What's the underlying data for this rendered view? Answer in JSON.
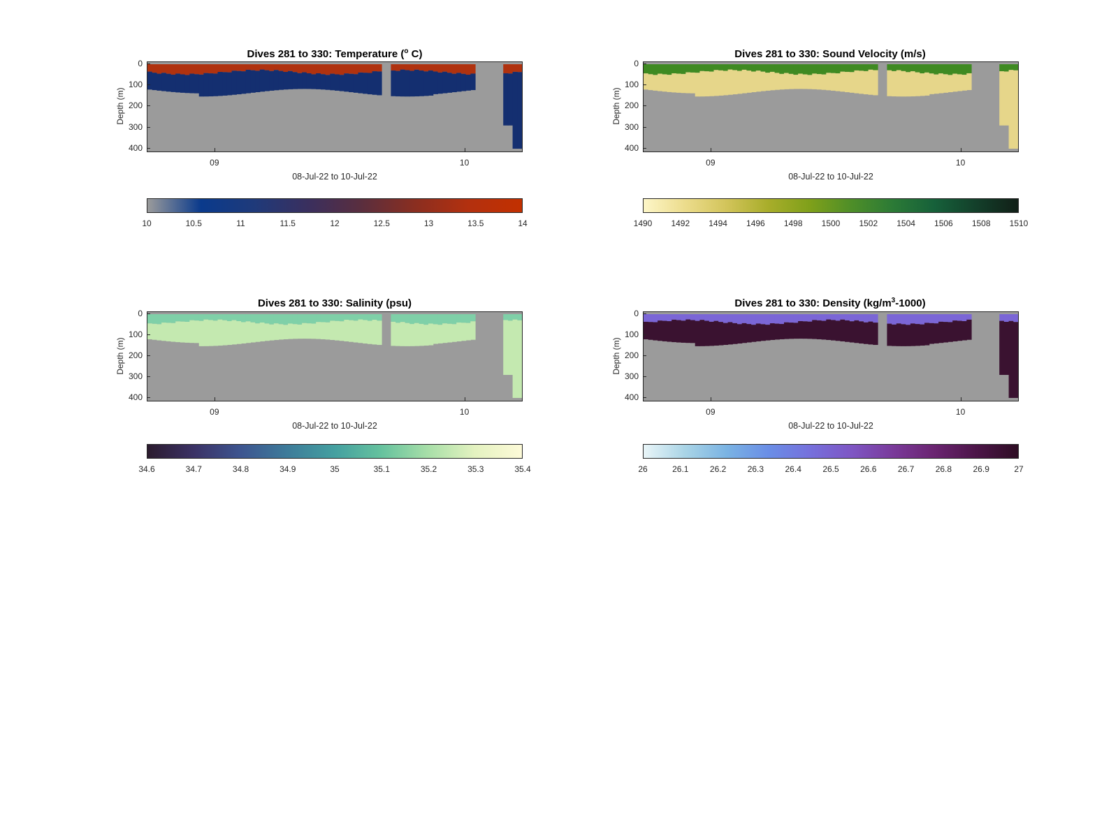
{
  "panels": [
    {
      "id": "temperature",
      "title_prefix": "Dives 281 to 330: Temperature (",
      "title_sup": "o",
      "title_suffix": " C)",
      "ylabel": "Depth (m)",
      "xlabel": "08-Jul-22 to 10-Jul-22",
      "yticks": [
        "0",
        "100",
        "200",
        "300",
        "400"
      ],
      "xticks": [
        "09",
        "10"
      ],
      "colorbar_ticks": [
        "10",
        "10.5",
        "11",
        "11.5",
        "12",
        "12.5",
        "13",
        "13.5",
        "14"
      ],
      "colorbar_colors": [
        "#9b9b9b",
        "#0a3a8c",
        "#1f3a7a",
        "#3a2f5e",
        "#5a2e3e",
        "#8a2e20",
        "#b3300f",
        "#c23000"
      ],
      "surface_color": "#b0320f",
      "deep_color": "#142f70"
    },
    {
      "id": "sound-velocity",
      "title_prefix": "Dives 281 to 330: Sound Velocity (m/s)",
      "title_sup": "",
      "title_suffix": "",
      "ylabel": "Depth (m)",
      "xlabel": "08-Jul-22 to 10-Jul-22",
      "yticks": [
        "0",
        "100",
        "200",
        "300",
        "400"
      ],
      "xticks": [
        "09",
        "10"
      ],
      "colorbar_ticks": [
        "1490",
        "1492",
        "1494",
        "1496",
        "1498",
        "1500",
        "1502",
        "1504",
        "1506",
        "1508",
        "1510"
      ],
      "colorbar_colors": [
        "#fdf6c8",
        "#ecdc8c",
        "#d2c45a",
        "#a8ad2a",
        "#7fa01a",
        "#4e8e28",
        "#2b7a36",
        "#16603a",
        "#133f2a",
        "#111f17"
      ],
      "surface_color": "#3f8a22",
      "deep_color": "#e6d68a"
    },
    {
      "id": "salinity",
      "title_prefix": "Dives 281 to 330: Salinity (psu)",
      "title_sup": "",
      "title_suffix": "",
      "ylabel": "Depth (m)",
      "xlabel": "08-Jul-22 to 10-Jul-22",
      "yticks": [
        "0",
        "100",
        "200",
        "300",
        "400"
      ],
      "xticks": [
        "09",
        "10"
      ],
      "colorbar_ticks": [
        "34.6",
        "34.7",
        "34.8",
        "34.9",
        "35",
        "35.1",
        "35.2",
        "35.3",
        "35.4"
      ],
      "colorbar_colors": [
        "#2b1b2e",
        "#3b3266",
        "#3d5590",
        "#3d7c9a",
        "#44a0a0",
        "#66c29e",
        "#a8dfa8",
        "#e4f2c0",
        "#fdfad8"
      ],
      "surface_color": "#7fd0a8",
      "deep_color": "#c4e9b0"
    },
    {
      "id": "density",
      "title_prefix": "Dives 281 to 330: Density (kg/m",
      "title_sup": "3",
      "title_suffix": "-1000)",
      "ylabel": "Depth (m)",
      "xlabel": "08-Jul-22 to 10-Jul-22",
      "yticks": [
        "0",
        "100",
        "200",
        "300",
        "400"
      ],
      "xticks": [
        "09",
        "10"
      ],
      "colorbar_ticks": [
        "26",
        "26.1",
        "26.2",
        "26.3",
        "26.4",
        "26.5",
        "26.6",
        "26.7",
        "26.8",
        "26.9",
        "27"
      ],
      "colorbar_colors": [
        "#e9f5f8",
        "#a9d4e6",
        "#7ab3e3",
        "#6a8ee6",
        "#7670dc",
        "#7e56c4",
        "#7a3a9a",
        "#6a2470",
        "#4c1548",
        "#2e0d24"
      ],
      "surface_color": "#7b66d6",
      "deep_color": "#3a1230"
    }
  ],
  "chart_data": [
    {
      "type": "heatmap",
      "title": "Dives 281 to 330: Temperature (o C)",
      "xlabel": "08-Jul-22 to 10-Jul-22",
      "ylabel": "Depth (m)",
      "ylim": [
        0,
        410
      ],
      "y_reversed": true,
      "x_ticks": [
        "09",
        "10"
      ],
      "colorbar_range": [
        10,
        14
      ],
      "colorbar_label_ticks": [
        10,
        10.5,
        11,
        11.5,
        12,
        12.5,
        13,
        13.5,
        14
      ],
      "surface_value": 13.5,
      "deep_value": 10.3,
      "max_profile_depth_m": 140
    },
    {
      "type": "heatmap",
      "title": "Dives 281 to 330: Sound Velocity (m/s)",
      "xlabel": "08-Jul-22 to 10-Jul-22",
      "ylabel": "Depth (m)",
      "ylim": [
        0,
        410
      ],
      "y_reversed": true,
      "x_ticks": [
        "09",
        "10"
      ],
      "colorbar_range": [
        1490,
        1510
      ],
      "colorbar_label_ticks": [
        1490,
        1492,
        1494,
        1496,
        1498,
        1500,
        1502,
        1504,
        1506,
        1508,
        1510
      ],
      "surface_value": 1501,
      "deep_value": 1493,
      "max_profile_depth_m": 140
    },
    {
      "type": "heatmap",
      "title": "Dives 281 to 330: Salinity (psu)",
      "xlabel": "08-Jul-22 to 10-Jul-22",
      "ylabel": "Depth (m)",
      "ylim": [
        0,
        410
      ],
      "y_reversed": true,
      "x_ticks": [
        "09",
        "10"
      ],
      "colorbar_range": [
        34.6,
        35.4
      ],
      "colorbar_label_ticks": [
        34.6,
        34.7,
        34.8,
        34.9,
        35,
        35.1,
        35.2,
        35.3,
        35.4
      ],
      "surface_value": 35.15,
      "deep_value": 35.3,
      "max_profile_depth_m": 140
    },
    {
      "type": "heatmap",
      "title": "Dives 281 to 330: Density (kg/m3-1000)",
      "xlabel": "08-Jul-22 to 10-Jul-22",
      "ylabel": "Depth (m)",
      "ylim": [
        0,
        410
      ],
      "y_reversed": true,
      "x_ticks": [
        "09",
        "10"
      ],
      "colorbar_range": [
        26,
        27
      ],
      "colorbar_label_ticks": [
        26,
        26.1,
        26.2,
        26.3,
        26.4,
        26.5,
        26.6,
        26.7,
        26.8,
        26.9,
        27
      ],
      "surface_value": 26.5,
      "deep_value": 26.95,
      "max_profile_depth_m": 140
    }
  ]
}
